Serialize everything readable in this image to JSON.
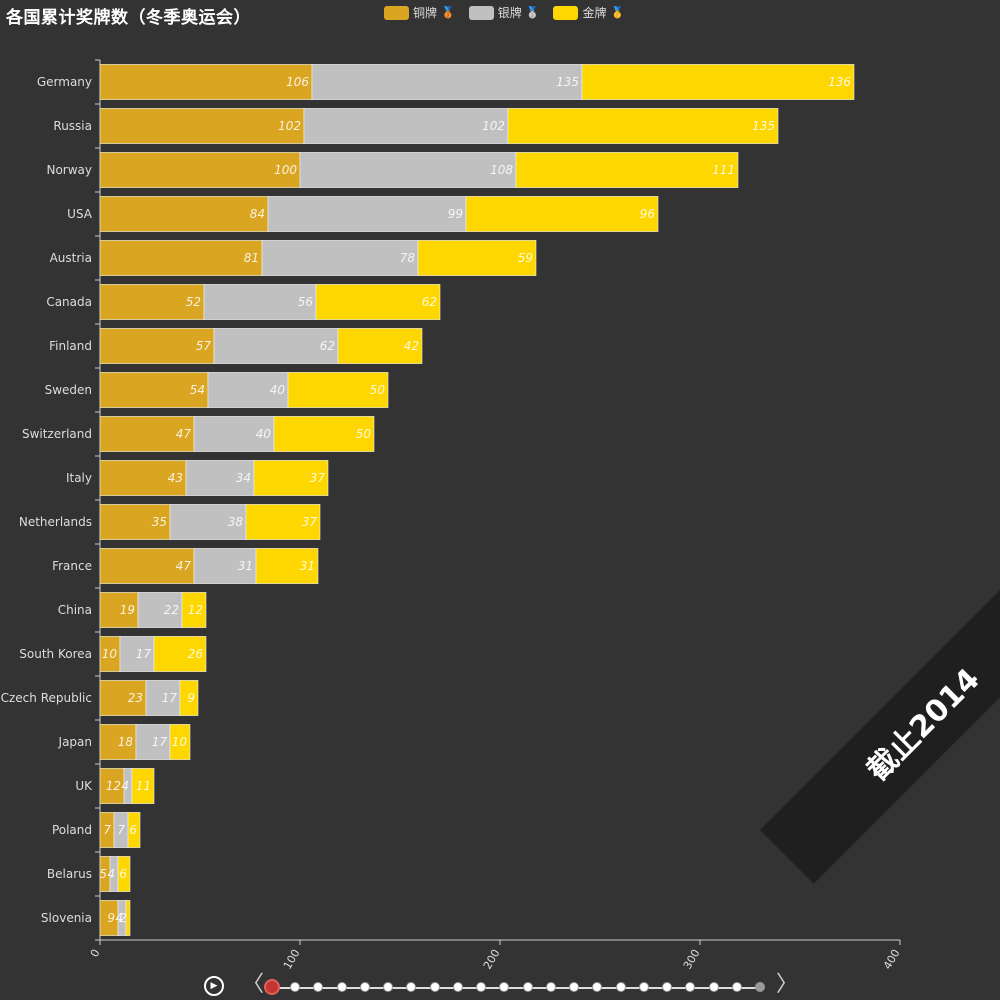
{
  "title": "各国累计奖牌数（冬季奥运会）",
  "legend": [
    {
      "label": "铜牌",
      "medal": "🥉",
      "color": "#DAA520"
    },
    {
      "label": "银牌",
      "medal": "🥈",
      "color": "#C0C0C0"
    },
    {
      "label": "金牌",
      "medal": "🥇",
      "color": "#FFD700"
    }
  ],
  "watermark": "截止2014",
  "timeline": {
    "count": 22,
    "current_index": 0,
    "play_icon": "play-icon",
    "prev_icon": "chevron-left-icon",
    "next_icon": "chevron-right-icon"
  },
  "chart_data": {
    "type": "bar",
    "orientation": "horizontal",
    "stacked": true,
    "title": "各国累计奖牌数（冬季奥运会）",
    "categories": [
      "Germany",
      "Russia",
      "Norway",
      "USA",
      "Austria",
      "Canada",
      "Finland",
      "Sweden",
      "Switzerland",
      "Italy",
      "Netherlands",
      "France",
      "China",
      "South Korea",
      "Czech Republic",
      "Japan",
      "UK",
      "Poland",
      "Belarus",
      "Slovenia"
    ],
    "series": [
      {
        "name": "铜牌",
        "color": "#DAA520",
        "values": [
          106,
          102,
          100,
          84,
          81,
          52,
          57,
          54,
          47,
          43,
          35,
          47,
          19,
          10,
          23,
          18,
          12,
          7,
          5,
          9
        ]
      },
      {
        "name": "银牌",
        "color": "#C0C0C0",
        "values": [
          135,
          102,
          108,
          99,
          78,
          56,
          62,
          40,
          40,
          34,
          38,
          31,
          22,
          17,
          17,
          17,
          4,
          7,
          4,
          4
        ]
      },
      {
        "name": "金牌",
        "color": "#FFD700",
        "values": [
          136,
          135,
          111,
          96,
          59,
          62,
          42,
          50,
          50,
          37,
          37,
          31,
          12,
          26,
          9,
          10,
          11,
          6,
          6,
          2
        ]
      }
    ],
    "xlim": [
      0,
      400
    ],
    "xticks": [
      0,
      100,
      200,
      300,
      400
    ],
    "xlabel": "",
    "ylabel": "",
    "legend_position": "top",
    "grid": false
  }
}
